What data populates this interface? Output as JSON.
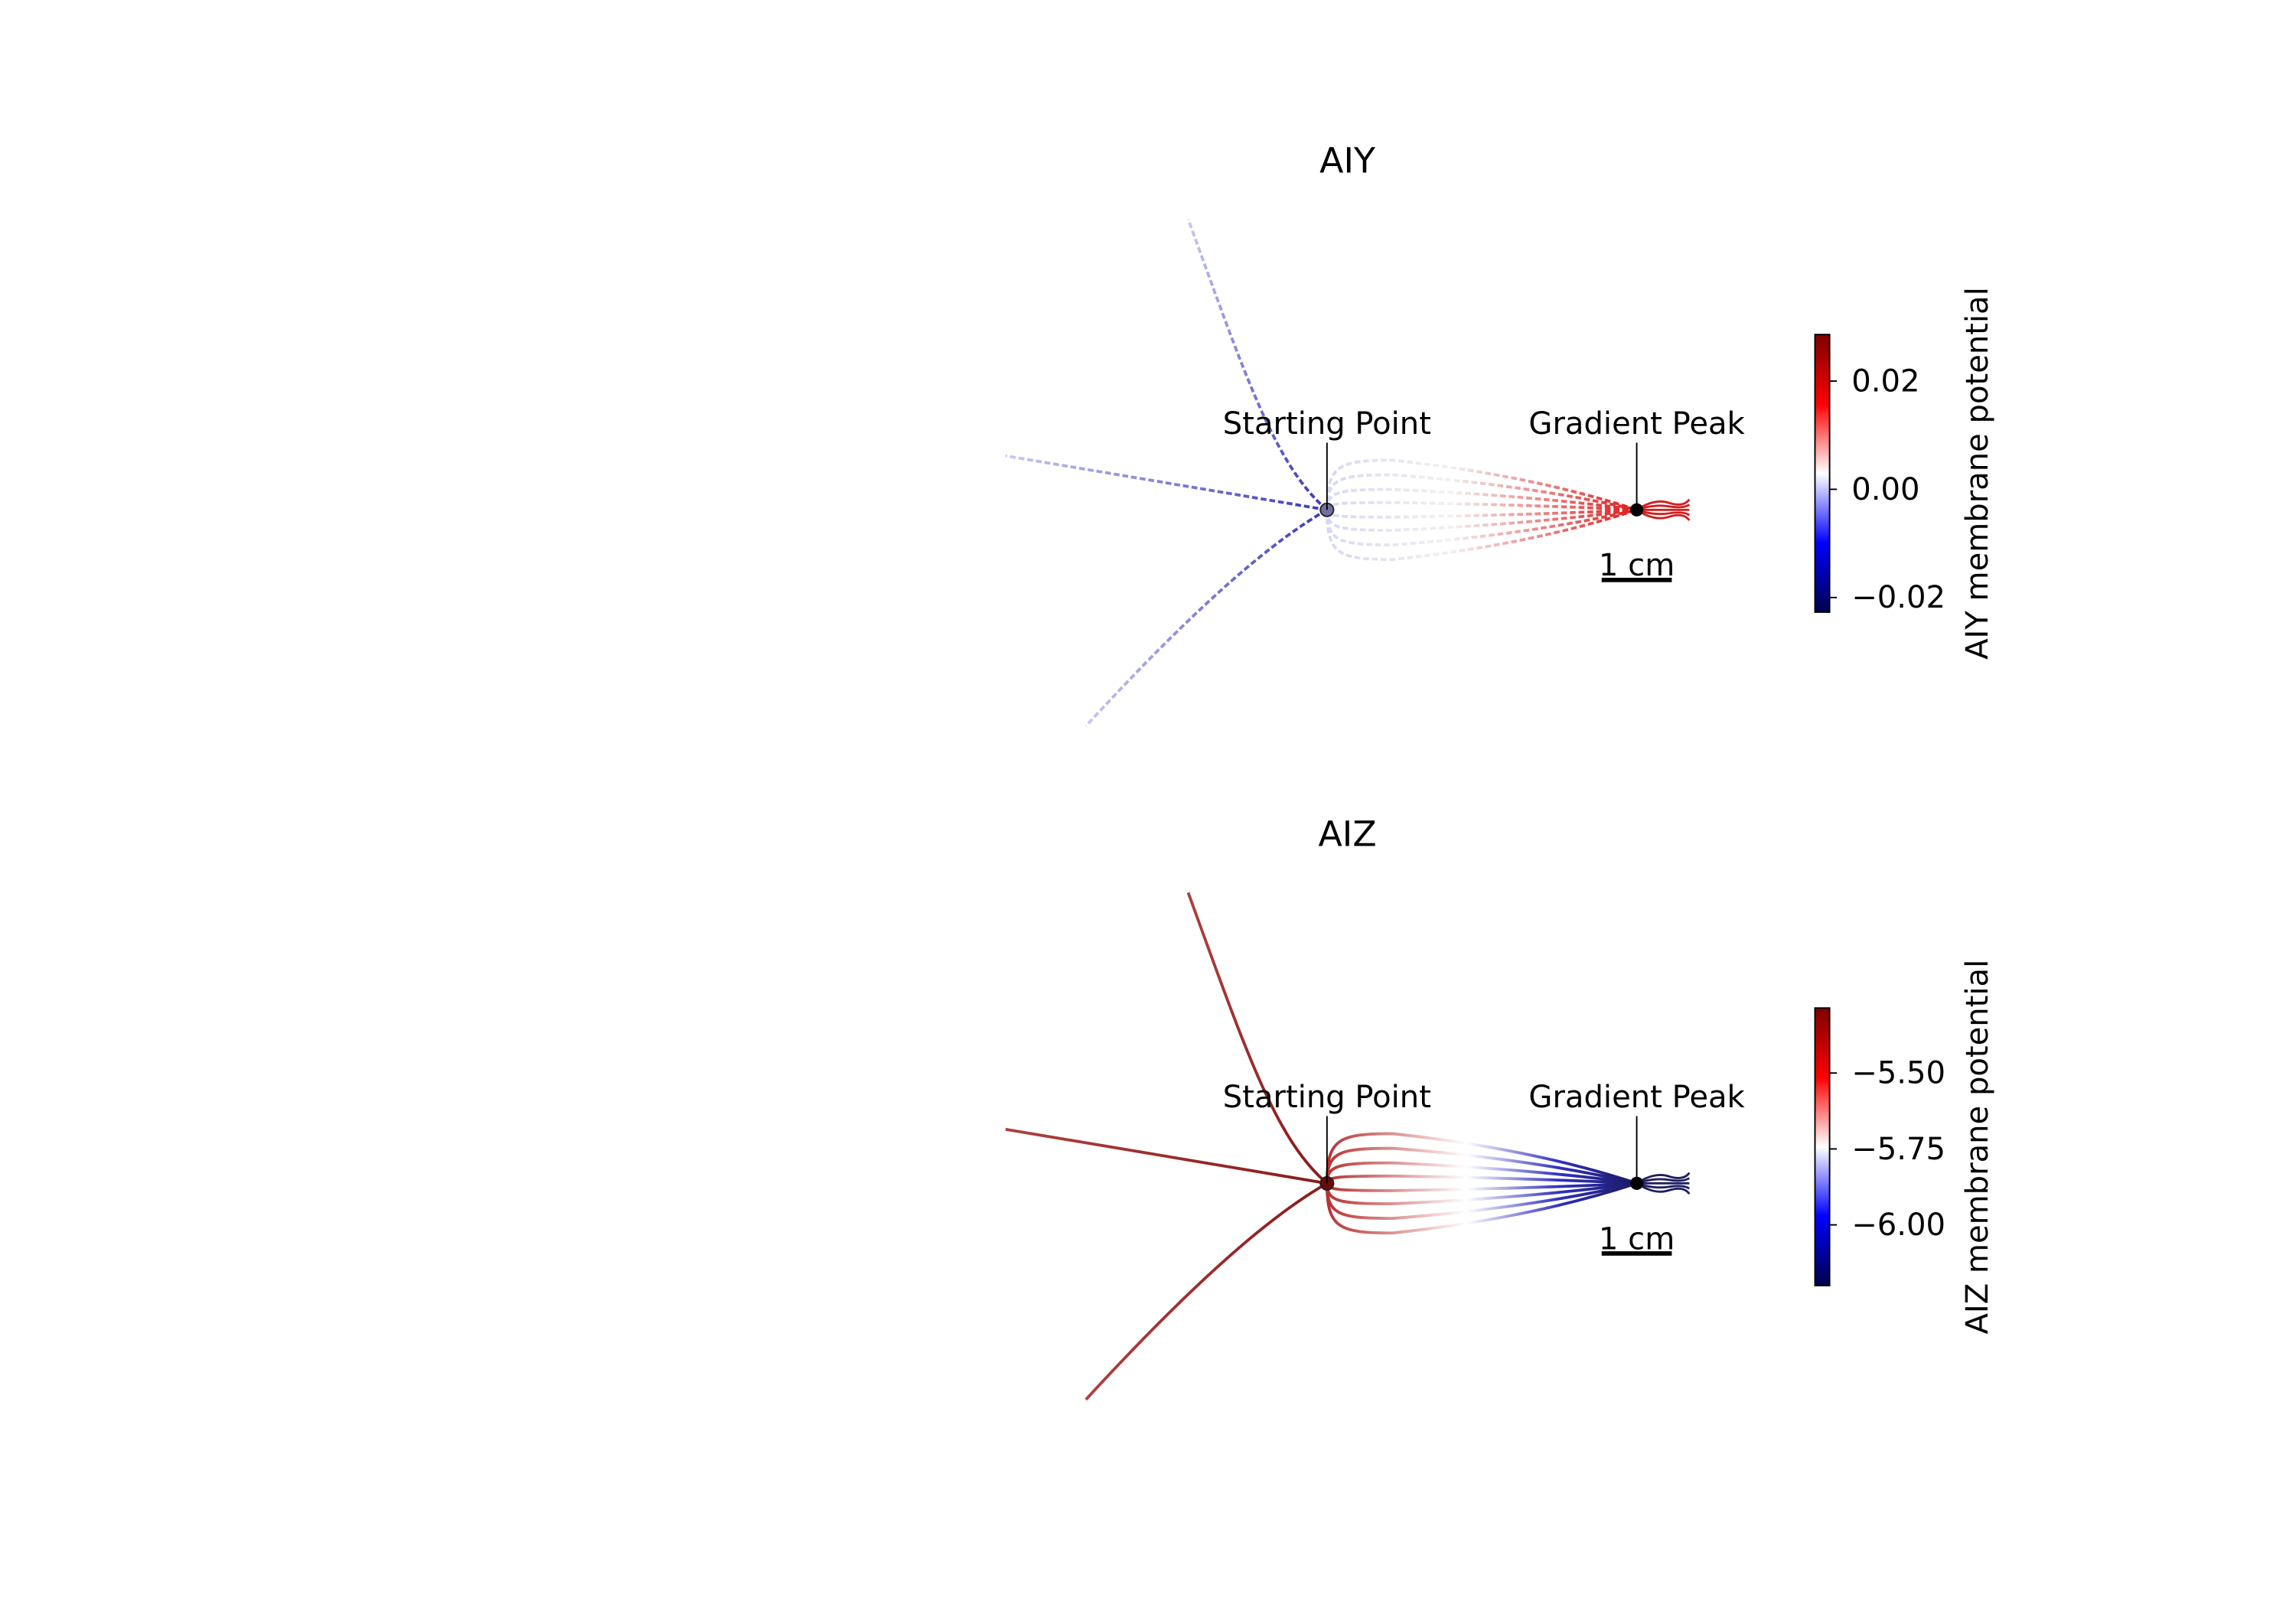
{
  "chart_data": [
    {
      "type": "trajectory",
      "title": "AIY",
      "annotations": [
        "Starting Point",
        "Gradient Peak"
      ],
      "scale_bar": "1 cm",
      "colorbar": {
        "label": "AIY membrane potential",
        "lim": [
          -0.0227,
          0.0286
        ],
        "ticks": [
          0.02,
          {
            "value": 0,
            "label": "0.00"
          },
          {
            "value": -0.02,
            "label": "−0.02"
          }
        ],
        "colormap": [
          "#00004c",
          "#0000ff",
          "#ffffff",
          "#ff0000",
          "#7f0000"
        ]
      }
    },
    {
      "type": "trajectory",
      "title": "AIZ",
      "annotations": [
        "Starting Point",
        "Gradient Peak"
      ],
      "scale_bar": "1 cm",
      "colorbar": {
        "label": "AIZ membrane potential",
        "lim": [
          -6.2,
          -5.286
        ],
        "ticks": [
          {
            "value": -5.5,
            "label": "−5.50"
          },
          {
            "value": -5.75,
            "label": "−5.75"
          },
          {
            "value": -6.0,
            "label": "−6.00"
          }
        ],
        "colormap": [
          "#00004c",
          "#0000ff",
          "#ffffff",
          "#ff0000",
          "#7f0000"
        ]
      }
    }
  ]
}
